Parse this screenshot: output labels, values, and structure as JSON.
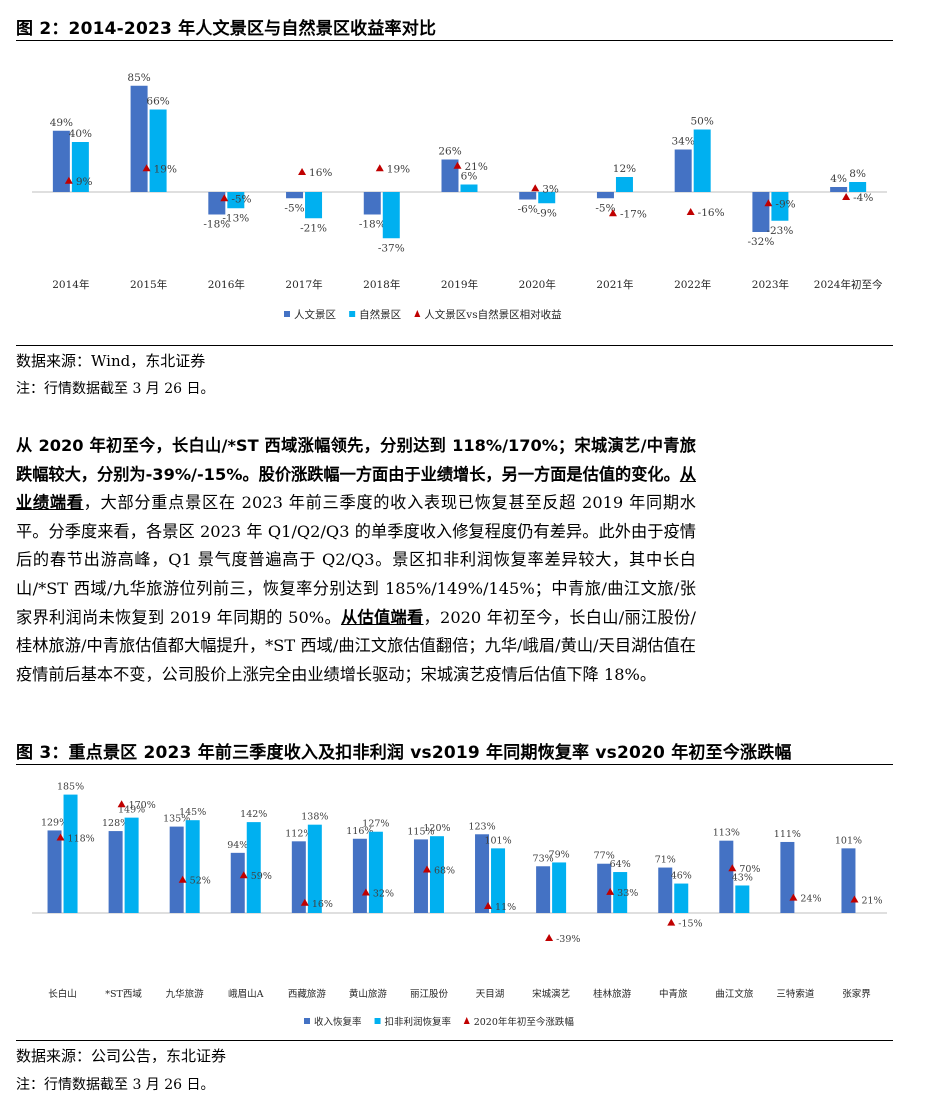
{
  "figure2": {
    "title": "图 2：2014-2023 年人文景区与自然景区收益率对比",
    "source": "数据来源：Wind，东北证券",
    "note": "注：行情数据截至 3 月 26 日。",
    "chart_data": {
      "type": "bar",
      "categories": [
        "2014年",
        "2015年",
        "2016年",
        "2017年",
        "2018年",
        "2019年",
        "2020年",
        "2021年",
        "2022年",
        "2023年",
        "2024年初至今"
      ],
      "series": [
        {
          "name": "人文景区",
          "type": "bar",
          "color": "#4472C4",
          "values": [
            49,
            85,
            -18,
            -5,
            -18,
            26,
            -6,
            -5,
            34,
            -32,
            4
          ],
          "labels": [
            "49%",
            "85%",
            "-18%",
            "-5%",
            "-18%",
            "26%",
            "-6%",
            "-5%",
            "34%",
            "-32%",
            "4%"
          ]
        },
        {
          "name": "自然景区",
          "type": "bar",
          "color": "#00B0F0",
          "values": [
            40,
            66,
            -13,
            -21,
            -37,
            6,
            -9,
            12,
            50,
            -23,
            8
          ],
          "labels": [
            "40%",
            "66%",
            "-13%",
            "-21%",
            "-37%",
            "6%",
            "-9%",
            "12%",
            "50%",
            "-23%",
            "8%"
          ]
        },
        {
          "name": "人文景区vs自然景区相对收益",
          "type": "scatter",
          "color": "#C00000",
          "values": [
            9,
            19,
            -5,
            16,
            19,
            21,
            3,
            -17,
            -16,
            -9,
            -4
          ],
          "labels": [
            "9%",
            "19%",
            "-5%",
            "16%",
            "19%",
            "21%",
            "3%",
            "-17%",
            "-16%",
            "-9%",
            "-4%"
          ]
        }
      ],
      "ylim": [
        -45,
        95
      ],
      "legend": "bottom"
    }
  },
  "paragraph": {
    "s1_bold": "从 2020 年初至今，长白山/*ST 西域涨幅领先，分别达到 118%/170%；宋城演艺/中青旅跌幅较大，分别为-39%/-15%。股价涨跌幅一方面由于业绩增长，另一方面是估值的变化。",
    "s2_ul": "从业绩端看",
    "s2_text": "，大部分重点景区在 2023 年前三季度的收入表现已恢复甚至反超 2019 年同期水平。分季度来看，各景区 2023 年 Q1/Q2/Q3 的单季度收入修复程度仍有差异。此外由于疫情后的春节出游高峰，Q1 景气度普遍高于 Q2/Q3。景区扣非利润恢复率差异较大，其中长白山/*ST 西域/九华旅游位列前三，恢复率分别达到 185%/149%/145%；中青旅/曲江文旅/张家界利润尚未恢复到 2019 年同期的 50%。",
    "s3_ul": "从估值端看",
    "s3_text": "，2020 年初至今，长白山/丽江股份/桂林旅游/中青旅估值都大幅提升，*ST 西域/曲江文旅估值翻倍；九华/峨眉/黄山/天目湖估值在疫情前后基本不变，公司股价上涨完全由业绩增长驱动；宋城演艺疫情后估值下降 18%。"
  },
  "figure3": {
    "title": "图 3：重点景区 2023 年前三季度收入及扣非利润 vs2019 年同期恢复率 vs2020 年初至今涨跌幅",
    "source": "数据来源：公司公告，东北证券",
    "note": "注：行情数据截至 3 月 26 日。",
    "chart_data": {
      "type": "bar",
      "categories": [
        "长白山",
        "*ST西域",
        "九华旅游",
        "峨眉山A",
        "西藏旅游",
        "黄山旅游",
        "丽江股份",
        "天目湖",
        "宋城演艺",
        "桂林旅游",
        "中青旅",
        "曲江文旅",
        "三特索道",
        "张家界"
      ],
      "series": [
        {
          "name": "收入恢复率",
          "type": "bar",
          "color": "#4472C4",
          "values": [
            129,
            128,
            135,
            94,
            112,
            116,
            115,
            123,
            73,
            77,
            71,
            113,
            111,
            101
          ],
          "labels": [
            "129%",
            "128%",
            "135%",
            "94%",
            "112%",
            "116%",
            "115%",
            "123%",
            "73%",
            "77%",
            "71%",
            "113%",
            "111%",
            "101%"
          ]
        },
        {
          "name": "扣非利润恢复率",
          "type": "bar",
          "color": "#00B0F0",
          "values": [
            185,
            149,
            145,
            142,
            138,
            127,
            120,
            101,
            79,
            64,
            46,
            43,
            null,
            null
          ],
          "labels": [
            "185%",
            "149%",
            "145%",
            "142%",
            "138%",
            "127%",
            "120%",
            "101%",
            "79%",
            "64%",
            "46%",
            "43%",
            "",
            ""
          ]
        },
        {
          "name": "2020年年初至今涨跌幅",
          "type": "scatter",
          "color": "#C00000",
          "values": [
            118,
            170,
            52,
            59,
            16,
            32,
            68,
            11,
            -39,
            33,
            -15,
            70,
            24,
            21
          ],
          "labels": [
            "118%",
            "170%",
            "52%",
            "59%",
            "16%",
            "32%",
            "68%",
            "11%",
            "-39%",
            "33%",
            "-15%",
            "70%",
            "24%",
            "21%"
          ]
        }
      ],
      "ylim": [
        -60,
        200
      ],
      "legend": "bottom"
    }
  }
}
